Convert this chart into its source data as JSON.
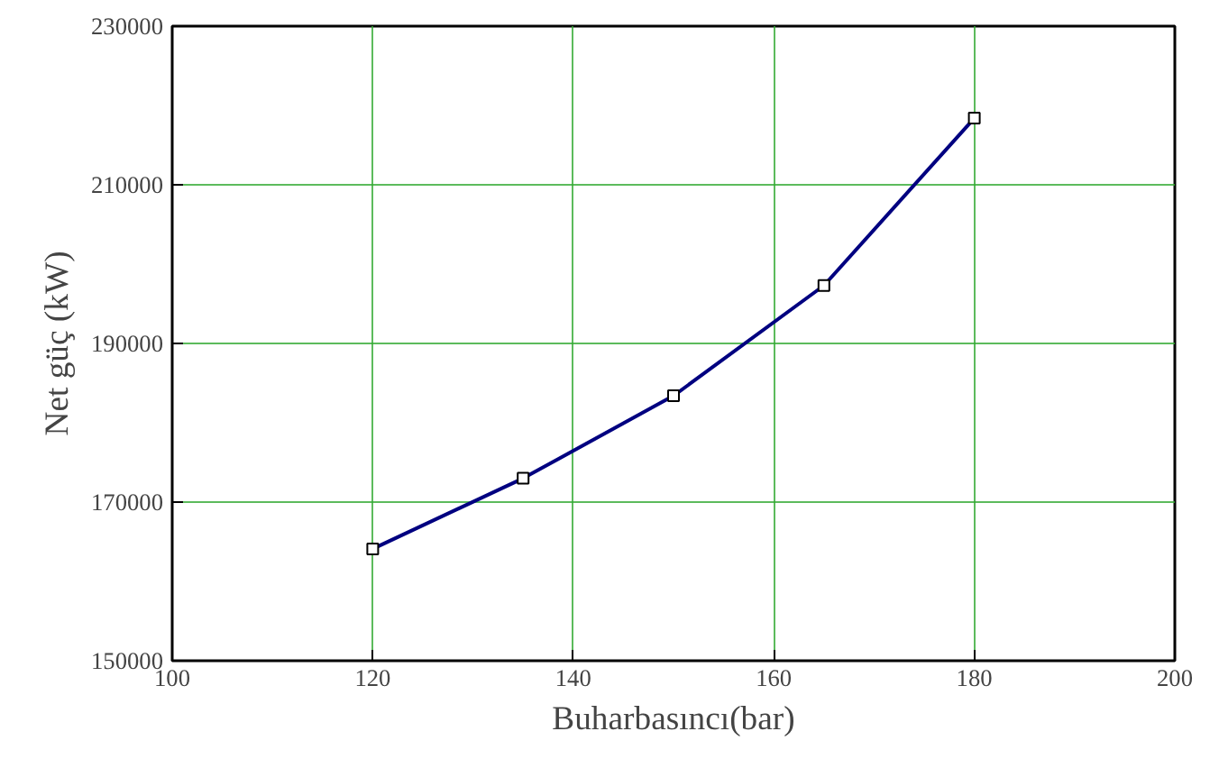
{
  "chart_data": {
    "type": "line",
    "xlabel": "Buharbasıncı(bar)",
    "ylabel": "Net güç (kW)",
    "x": [
      120,
      135,
      150,
      165,
      180
    ],
    "series": [
      {
        "color": "#000080",
        "values": [
          164100,
          173000,
          183400,
          197300,
          218400
        ]
      }
    ],
    "xlim": [
      100,
      200
    ],
    "xticks": [
      100,
      120,
      140,
      160,
      180,
      200
    ],
    "ylim": [
      150000,
      230000
    ],
    "yticks": [
      150000,
      170000,
      190000,
      210000,
      230000
    ],
    "grid": true,
    "marker": "square",
    "line_style": "solid"
  }
}
